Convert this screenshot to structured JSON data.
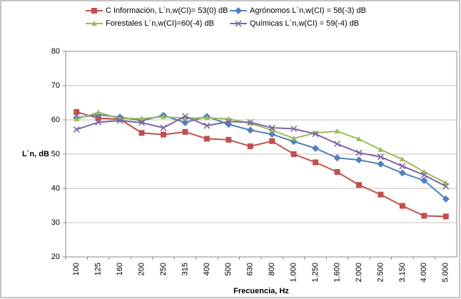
{
  "chart_data": {
    "type": "line",
    "x_label": "Frecuencia, Hz",
    "y_label": "L´n, dB",
    "categories": [
      "100",
      "125",
      "160",
      "200",
      "250",
      "315",
      "400",
      "500",
      "630",
      "800",
      "1.000",
      "1.250",
      "1.600",
      "2.000",
      "2.500",
      "3.150",
      "4.000",
      "5.000"
    ],
    "series": [
      {
        "name": "C Información, L´n,w(CI)= 53(0) dB",
        "color": "#c0504d",
        "marker": "square",
        "values": [
          62.3,
          60.5,
          60.2,
          56.2,
          55.7,
          56.5,
          54.5,
          54.2,
          52.3,
          53.8,
          50.0,
          47.6,
          44.8,
          41.0,
          38.2,
          34.9,
          32.0,
          31.8
        ]
      },
      {
        "name": "Agrónomos L´n,w(CI) = 58(-3) dB",
        "color": "#4f81bd",
        "marker": "diamond",
        "values": [
          60.6,
          61.5,
          60.8,
          59.8,
          61.3,
          59.2,
          61.0,
          58.7,
          57.0,
          55.8,
          53.7,
          51.7,
          48.9,
          48.3,
          47.1,
          44.5,
          42.3,
          36.9
        ]
      },
      {
        "name": "Forestales L´n,w(CI)=60(-4) dB",
        "color": "#9bbb59",
        "marker": "triangle",
        "values": [
          60.2,
          62.2,
          60.4,
          60.4,
          60.9,
          60.5,
          60.6,
          60.3,
          59.0,
          57.0,
          54.6,
          56.2,
          56.7,
          54.4,
          51.3,
          48.5,
          44.8,
          41.6
        ]
      },
      {
        "name": "Químicas L´n,w(CI) = 59(-4) dB",
        "color": "#8064a2",
        "marker": "x",
        "values": [
          57.2,
          59.3,
          59.8,
          59.2,
          57.7,
          61.1,
          58.3,
          59.5,
          59.3,
          57.7,
          57.4,
          55.9,
          53.0,
          50.4,
          49.2,
          46.5,
          43.9,
          40.6
        ]
      }
    ],
    "ylim": [
      20,
      80
    ],
    "yticks": [
      20,
      30,
      40,
      50,
      60,
      70,
      80
    ],
    "grid": true
  }
}
